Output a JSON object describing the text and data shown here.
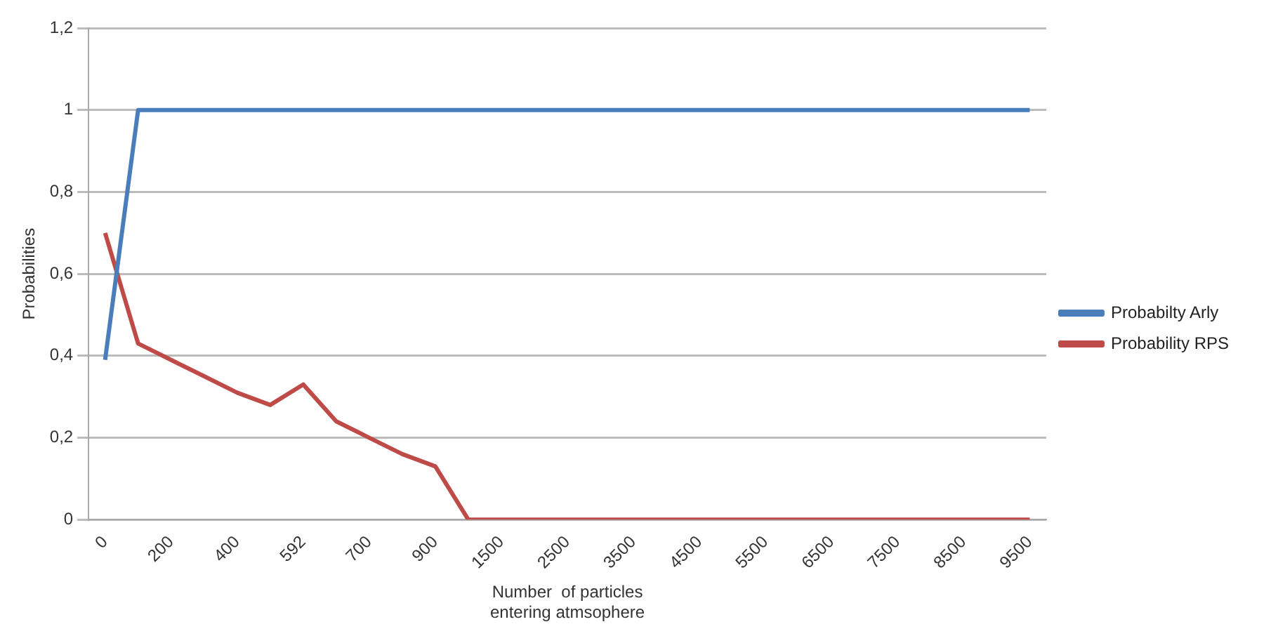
{
  "chart_data": {
    "type": "line",
    "xlabel": "Number  of particles\nentering atmsophere",
    "ylabel": "Probabilities",
    "categories": [
      "0",
      null,
      "200",
      null,
      "400",
      null,
      "592",
      null,
      "700",
      null,
      "900",
      null,
      "1500",
      null,
      "2500",
      null,
      "3500",
      null,
      "4500",
      null,
      "5500",
      null,
      "6500",
      null,
      "7500",
      null,
      "8500",
      null,
      "9500"
    ],
    "series": [
      {
        "name": "Probabilty Arly",
        "color": "#4a7ebb",
        "values": [
          0.39,
          1,
          1,
          1,
          1,
          1,
          1,
          1,
          1,
          1,
          1,
          1,
          1,
          1,
          1,
          1,
          1,
          1,
          1,
          1,
          1,
          1,
          1,
          1,
          1,
          1,
          1,
          1,
          1
        ]
      },
      {
        "name": "Probability RPS",
        "color": "#be4b48",
        "values": [
          0.7,
          0.43,
          0.39,
          0.35,
          0.31,
          0.28,
          0.33,
          0.24,
          0.2,
          0.16,
          0.13,
          0,
          0,
          0,
          0,
          0,
          0,
          0,
          0,
          0,
          0,
          0,
          0,
          0,
          0,
          0,
          0,
          0,
          0
        ]
      }
    ],
    "ylim": [
      0,
      1.2
    ],
    "yticks": [
      0,
      {
        "value": 0.2,
        "label": "0,2"
      },
      {
        "value": 0.4,
        "label": "0,4"
      },
      {
        "value": 0.6,
        "label": "0,6"
      },
      {
        "value": 0.8,
        "label": "0,8"
      },
      1,
      {
        "value": 1.2,
        "label": "1,2"
      }
    ],
    "grid": "y",
    "legend": "right",
    "marker": "none",
    "line_style": "solid"
  }
}
